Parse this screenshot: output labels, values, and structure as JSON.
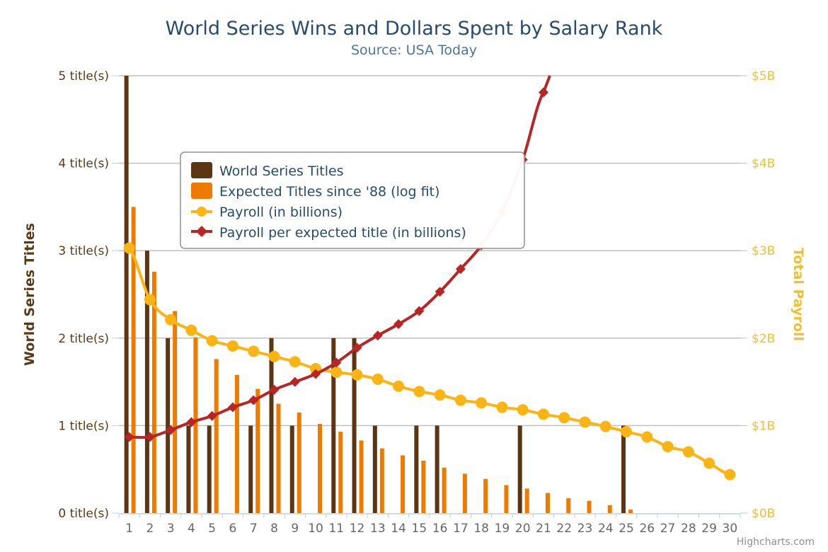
{
  "chart_data": {
    "type": "bar",
    "title": "World Series Wins and Dollars Spent by Salary Rank",
    "subtitle": "Source: USA Today",
    "xlabel": "",
    "categories": [
      "1",
      "2",
      "3",
      "4",
      "5",
      "6",
      "7",
      "8",
      "9",
      "10",
      "11",
      "12",
      "13",
      "14",
      "15",
      "16",
      "17",
      "18",
      "19",
      "20",
      "21",
      "22",
      "23",
      "24",
      "25",
      "26",
      "27",
      "28",
      "29",
      "30"
    ],
    "y_axis_left": {
      "title": "World Series Titles",
      "ylim": [
        0,
        5
      ],
      "ticks": [
        0,
        1,
        2,
        3,
        4,
        5
      ],
      "tick_labels": [
        "0 title(s)",
        "1 title(s)",
        "2 title(s)",
        "3 title(s)",
        "4 title(s)",
        "5 title(s)"
      ],
      "color": "#5c3a15"
    },
    "y_axis_right": {
      "title": "Total Payroll",
      "ylim": [
        0,
        5
      ],
      "ticks": [
        0,
        1,
        2,
        3,
        4,
        5
      ],
      "tick_labels": [
        "$0B",
        "$1B",
        "$2B",
        "$3B",
        "$4B",
        "$5B"
      ],
      "color": "#f0c030"
    },
    "grid": true,
    "legend_position": "top-left inside plot",
    "series": [
      {
        "name": "World Series Titles",
        "type": "column",
        "axis": "left",
        "color": "#5c3513",
        "values": [
          5,
          3,
          2,
          1,
          1,
          0,
          1,
          2,
          1,
          0,
          2,
          2,
          1,
          0,
          1,
          1,
          0,
          0,
          0,
          1,
          0,
          0,
          0,
          0,
          1,
          0,
          0,
          0,
          0,
          0
        ]
      },
      {
        "name": "Expected Titles since '88 (log fit)",
        "type": "column",
        "axis": "left",
        "color": "#ee7b00",
        "values": [
          3.5,
          2.76,
          2.31,
          2.01,
          1.76,
          1.58,
          1.42,
          1.25,
          1.15,
          1.02,
          0.93,
          0.83,
          0.74,
          0.66,
          0.6,
          0.52,
          0.45,
          0.39,
          0.32,
          0.28,
          0.23,
          0.17,
          0.14,
          0.09,
          0.04,
          0,
          0,
          0,
          0,
          0
        ]
      },
      {
        "name": "Payroll (in billions)",
        "type": "line",
        "axis": "right",
        "color": "#fbb414",
        "marker": "circle",
        "values": [
          3.03,
          2.44,
          2.21,
          2.09,
          1.97,
          1.91,
          1.85,
          1.79,
          1.73,
          1.65,
          1.61,
          1.58,
          1.53,
          1.45,
          1.39,
          1.35,
          1.29,
          1.26,
          1.21,
          1.18,
          1.13,
          1.09,
          1.04,
          0.99,
          0.93,
          0.87,
          0.76,
          0.7,
          0.57,
          0.44
        ]
      },
      {
        "name": "Payroll per expected title (in billions)",
        "type": "line",
        "axis": "right",
        "color": "#b82525",
        "marker": "diamond",
        "values": [
          0.87,
          0.87,
          0.95,
          1.04,
          1.11,
          1.21,
          1.29,
          1.41,
          1.5,
          1.59,
          1.72,
          1.89,
          2.03,
          2.16,
          2.31,
          2.53,
          2.79,
          3.06,
          3.44,
          4.04,
          4.81,
          null,
          null,
          null,
          null,
          null,
          null,
          null,
          null,
          null
        ]
      }
    ],
    "credits": "Highcharts.com"
  }
}
